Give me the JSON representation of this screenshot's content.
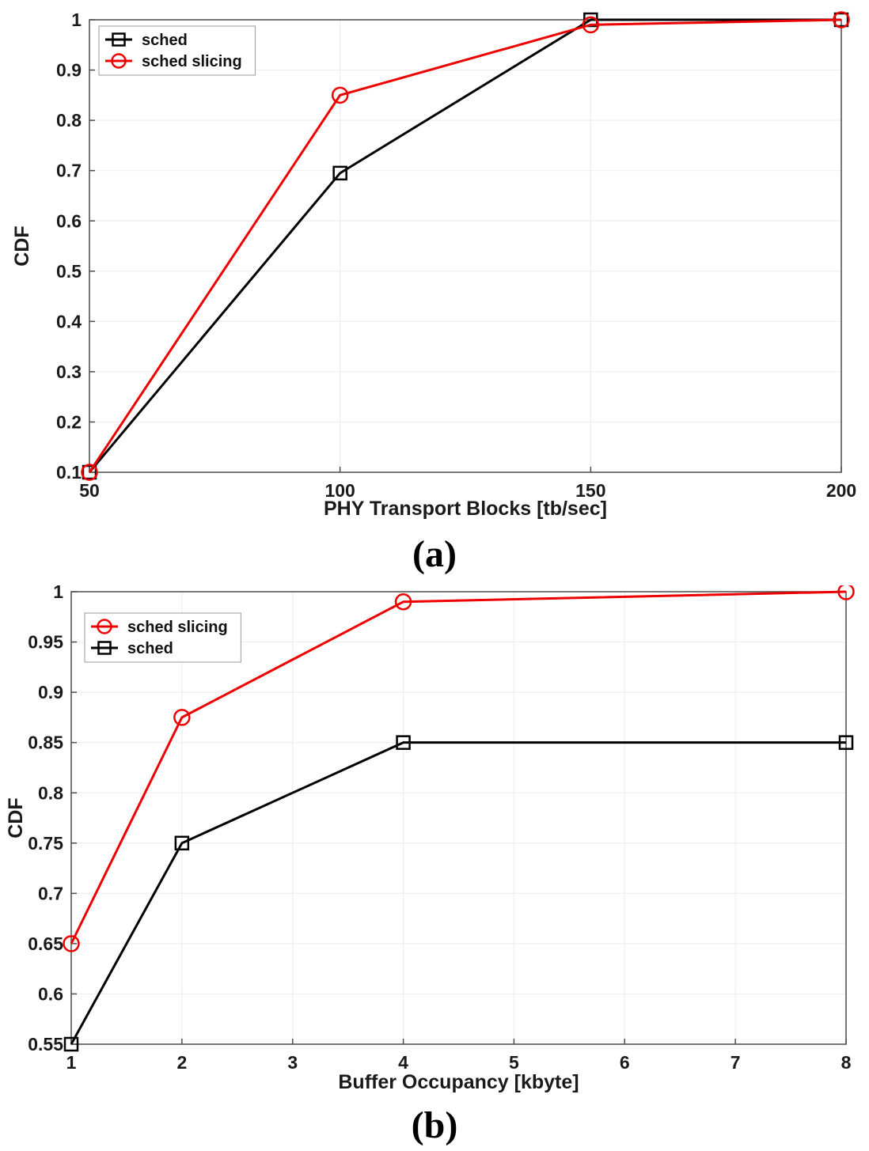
{
  "figure": {
    "captions": {
      "a": "(a)",
      "b": "(b)"
    }
  },
  "colors": {
    "sched": "#000000",
    "sched_slicing": "#ee0000",
    "grid": "#efefef",
    "axis": "#4d4d4d",
    "tick_text": "#1a1a1a",
    "legend_border": "#9a9a9a",
    "background": "#ffffff"
  },
  "chart_data": [
    {
      "id": "a",
      "type": "line",
      "title": "",
      "xlabel": "PHY Transport Blocks [tb/sec]",
      "ylabel": "CDF",
      "xlim": [
        50,
        200
      ],
      "ylim": [
        0.1,
        1.0
      ],
      "xticks": [
        50,
        100,
        150,
        200
      ],
      "yticks": [
        0.1,
        0.2,
        0.3,
        0.4,
        0.5,
        0.6,
        0.7,
        0.8,
        0.9,
        1.0
      ],
      "grid": true,
      "legend_position": "top-left",
      "legend_order": [
        "sched",
        "sched slicing"
      ],
      "series": [
        {
          "name": "sched",
          "marker": "square",
          "color": "#000000",
          "x": [
            50,
            100,
            150,
            200
          ],
          "y": [
            0.1,
            0.695,
            1.0,
            1.0
          ]
        },
        {
          "name": "sched slicing",
          "marker": "circle",
          "color": "#ee0000",
          "x": [
            50,
            100,
            150,
            200
          ],
          "y": [
            0.1,
            0.85,
            0.99,
            1.0
          ]
        }
      ]
    },
    {
      "id": "b",
      "type": "line",
      "title": "",
      "xlabel": "Buffer Occupancy [kbyte]",
      "ylabel": "CDF",
      "xlim": [
        1,
        8
      ],
      "ylim": [
        0.55,
        1.0
      ],
      "xticks": [
        1,
        2,
        3,
        4,
        5,
        6,
        7,
        8
      ],
      "yticks": [
        0.55,
        0.6,
        0.65,
        0.7,
        0.75,
        0.8,
        0.85,
        0.9,
        0.95,
        1.0
      ],
      "grid": true,
      "legend_position": "top-left",
      "legend_order": [
        "sched slicing",
        "sched"
      ],
      "series": [
        {
          "name": "sched slicing",
          "marker": "circle",
          "color": "#ee0000",
          "x": [
            1,
            2,
            4,
            8
          ],
          "y": [
            0.65,
            0.875,
            0.99,
            1.0
          ]
        },
        {
          "name": "sched",
          "marker": "square",
          "color": "#000000",
          "x": [
            1,
            2,
            4,
            8
          ],
          "y": [
            0.55,
            0.75,
            0.85,
            0.85
          ]
        }
      ]
    }
  ]
}
